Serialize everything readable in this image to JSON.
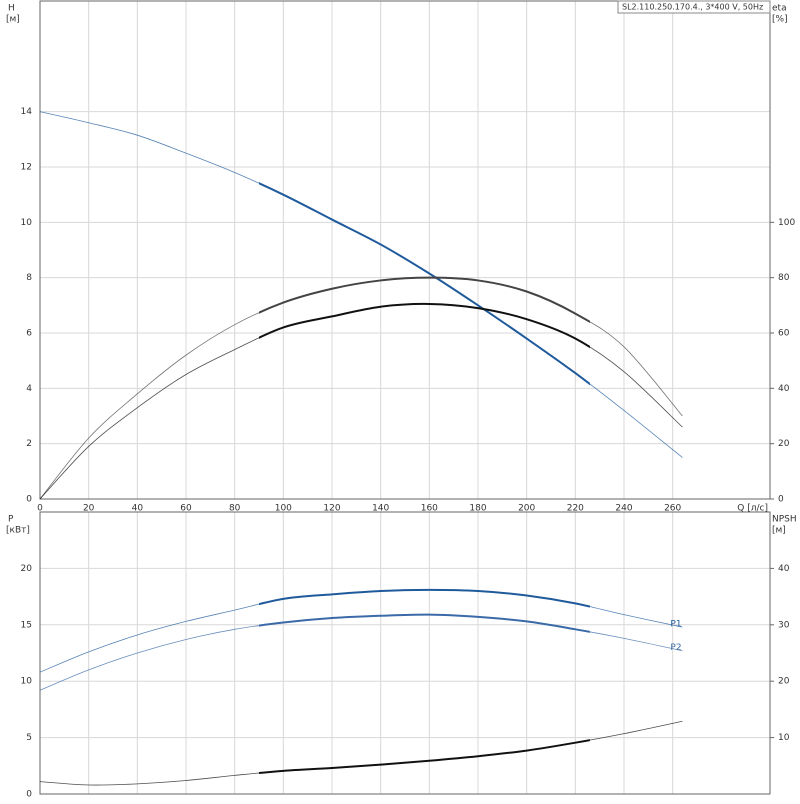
{
  "chart_data": [
    {
      "type": "line",
      "title": "SL2.110.250.170.4., 3*400 V, 50Hz",
      "y_label": "H",
      "y_unit": "[м]",
      "y2_label": "eta",
      "y2_unit": "[%]",
      "x_label": "Q [л/с]",
      "x": [
        0,
        20,
        40,
        60,
        80,
        100,
        120,
        140,
        160,
        180,
        200,
        220,
        240,
        264
      ],
      "xlim": [
        0,
        300
      ],
      "xticks": [
        0,
        20,
        40,
        60,
        80,
        100,
        120,
        140,
        160,
        180,
        200,
        220,
        240,
        260
      ],
      "ylim": [
        0,
        18
      ],
      "yticks": [
        0,
        2,
        4,
        6,
        8,
        10,
        12,
        14
      ],
      "y2lim": [
        0,
        180
      ],
      "y2ticks": [
        0,
        20,
        40,
        60,
        80,
        100
      ],
      "highlight_range": [
        90,
        226
      ],
      "grid": true,
      "series": [
        {
          "color": "#1f5b9c",
          "values": [
            14,
            13.6,
            13.15,
            12.5,
            11.8,
            11.0,
            10.1,
            9.2,
            8.15,
            7.0,
            5.8,
            4.55,
            3.2,
            1.5
          ]
        },
        {
          "color": "#444444",
          "axis": "y2",
          "values": [
            0,
            22,
            38,
            52,
            63,
            71,
            76,
            79,
            80,
            79,
            75,
            67,
            55,
            30
          ]
        },
        {
          "color": "#111111",
          "axis": "y2",
          "values": [
            0,
            19,
            33,
            45,
            54,
            62,
            66,
            69.5,
            70.5,
            69,
            65,
            58,
            46,
            26
          ]
        }
      ]
    },
    {
      "type": "line",
      "y_label": "P",
      "y_unit": "[кВт]",
      "y2_label": "NPSH",
      "y2_unit": "[м]",
      "x": [
        0,
        20,
        40,
        60,
        80,
        100,
        120,
        140,
        160,
        180,
        200,
        220,
        240,
        264
      ],
      "xlim": [
        0,
        300
      ],
      "ylim": [
        0,
        25
      ],
      "yticks": [
        0,
        5,
        10,
        15,
        20
      ],
      "y2lim": [
        0,
        50
      ],
      "y2ticks": [
        10,
        20,
        30,
        40
      ],
      "highlight_range": [
        90,
        226
      ],
      "grid": true,
      "series": [
        {
          "name": "P1",
          "color": "#1f5b9c",
          "values": [
            10.8,
            12.6,
            14.1,
            15.3,
            16.3,
            17.3,
            17.7,
            18.0,
            18.1,
            18.0,
            17.6,
            16.9,
            15.9,
            14.8
          ]
        },
        {
          "name": "P2",
          "color": "#3a6aa8",
          "values": [
            9.2,
            11.0,
            12.5,
            13.7,
            14.6,
            15.2,
            15.6,
            15.8,
            15.9,
            15.7,
            15.3,
            14.6,
            13.8,
            12.7
          ]
        },
        {
          "color": "#111111",
          "axis": "y2",
          "values": [
            2.2,
            1.6,
            1.8,
            2.4,
            3.3,
            4.1,
            4.6,
            5.2,
            5.9,
            6.7,
            7.7,
            9.1,
            10.7,
            12.9
          ]
        }
      ]
    }
  ]
}
